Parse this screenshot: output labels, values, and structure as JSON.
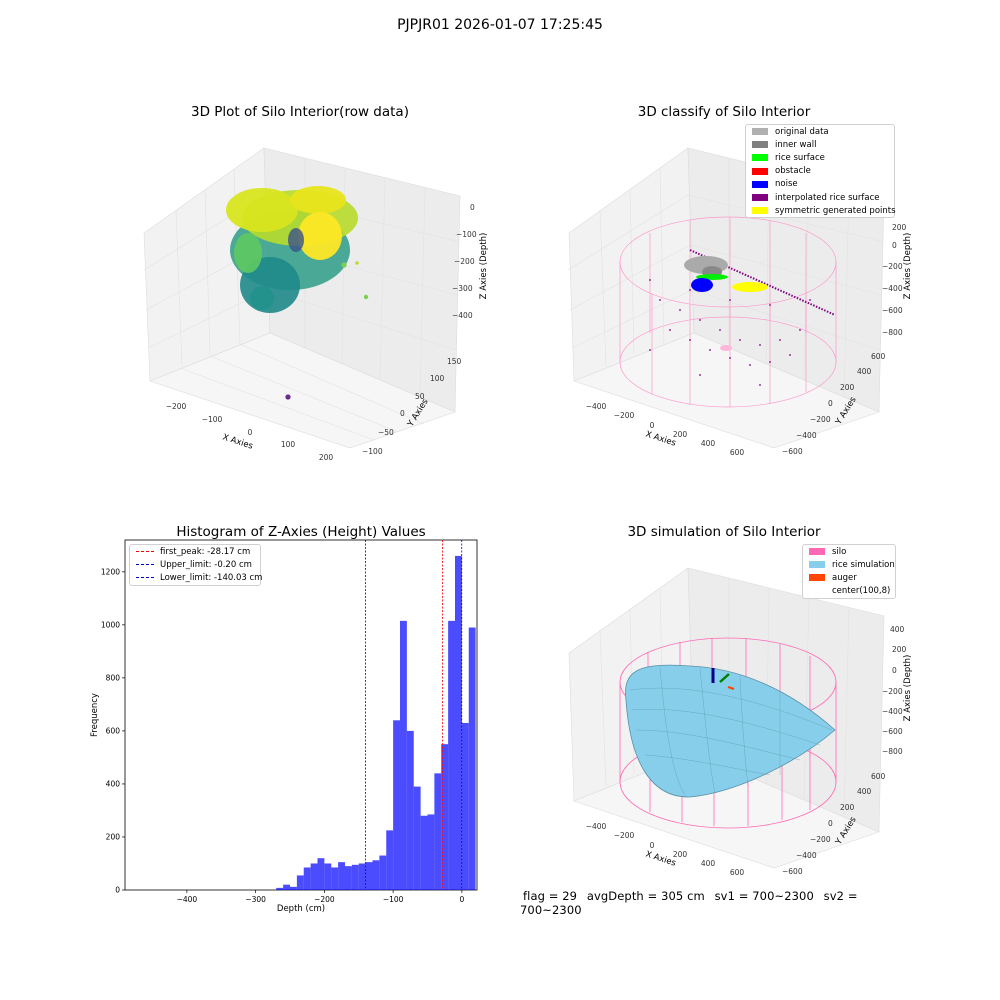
{
  "suptitle": "PJPJR01 2026-01-07 17:25:45",
  "colors": {
    "hist_bar": "#0000ff",
    "first_peak_line": "#ff0000",
    "limit_lines": "#0000cd",
    "silo_wire": "#ff69b4",
    "rice_surface": "#87ceeb"
  },
  "chart_data": [
    {
      "type": "scatter",
      "title": "3D Plot of Silo Interior(row data)",
      "xlabel": "X Axies",
      "ylabel": "Y Axies",
      "zlabel": "Z Axies (Depth)",
      "x_ticks": [
        "−200",
        "−100",
        "0",
        "100",
        "200"
      ],
      "y_ticks": [
        "−100",
        "−50",
        "0",
        "50",
        "100",
        "150"
      ],
      "z_ticks": [
        "−400",
        "−300",
        "−200",
        "−100",
        "0"
      ],
      "xlim": [
        -280,
        230
      ],
      "ylim": [
        -110,
        170
      ],
      "zlim": [
        -460,
        20
      ],
      "colormap": "viridis (by depth)",
      "note": "dense point cloud of silo interior, approx. 10,000 points"
    },
    {
      "type": "scatter",
      "title": "3D classify of Silo Interior",
      "xlabel": "X Axies",
      "ylabel": "Y Axies",
      "zlabel": "Z Axies (Depth)",
      "x_ticks": [
        "−400",
        "−200",
        "0",
        "200",
        "400",
        "600"
      ],
      "y_ticks": [
        "−600",
        "−400",
        "−200",
        "0",
        "200",
        "400",
        "600"
      ],
      "z_ticks": [
        "−800",
        "−600",
        "−400",
        "−200",
        "0",
        "200"
      ],
      "legend": [
        {
          "label": "original data",
          "color": "#b0b0b0"
        },
        {
          "label": "inner wall",
          "color": "#808080"
        },
        {
          "label": "rice surface",
          "color": "#00ff00"
        },
        {
          "label": "obstacle",
          "color": "#ff0000"
        },
        {
          "label": "noise",
          "color": "#0000ff"
        },
        {
          "label": "interpolated rice surface",
          "color": "#800080"
        },
        {
          "label": "symmetric generated points",
          "color": "#ffff00"
        }
      ]
    },
    {
      "type": "bar",
      "title": "Histogram of Z-Axies (Height) Values",
      "xlabel": "Depth (cm)",
      "ylabel": "Frequency",
      "xlim": [
        -490,
        22
      ],
      "ylim": [
        0,
        1320
      ],
      "x_ticks": [
        -400,
        -300,
        -200,
        -100,
        0
      ],
      "y_ticks": [
        0,
        200,
        400,
        600,
        800,
        1000,
        1200
      ],
      "bin_width": 10,
      "bins": [
        {
          "x0": -270,
          "value": 8
        },
        {
          "x0": -260,
          "value": 20
        },
        {
          "x0": -250,
          "value": 12
        },
        {
          "x0": -240,
          "value": 55
        },
        {
          "x0": -230,
          "value": 85
        },
        {
          "x0": -220,
          "value": 100
        },
        {
          "x0": -210,
          "value": 120
        },
        {
          "x0": -200,
          "value": 100
        },
        {
          "x0": -190,
          "value": 85
        },
        {
          "x0": -180,
          "value": 105
        },
        {
          "x0": -170,
          "value": 90
        },
        {
          "x0": -160,
          "value": 95
        },
        {
          "x0": -150,
          "value": 100
        },
        {
          "x0": -140,
          "value": 105
        },
        {
          "x0": -130,
          "value": 112
        },
        {
          "x0": -120,
          "value": 130
        },
        {
          "x0": -110,
          "value": 225
        },
        {
          "x0": -100,
          "value": 640
        },
        {
          "x0": -90,
          "value": 1015
        },
        {
          "x0": -80,
          "value": 600
        },
        {
          "x0": -70,
          "value": 390
        },
        {
          "x0": -60,
          "value": 280
        },
        {
          "x0": -50,
          "value": 285
        },
        {
          "x0": -40,
          "value": 440
        },
        {
          "x0": -30,
          "value": 550
        },
        {
          "x0": -20,
          "value": 1015
        },
        {
          "x0": -10,
          "value": 1260
        },
        {
          "x0": 0,
          "value": 630
        },
        {
          "x0": 10,
          "value": 990
        }
      ],
      "vlines": [
        {
          "label": "first_peak: -28.17 cm",
          "x": -28.17,
          "color": "#ff0000"
        },
        {
          "label": "Upper_limit: -0.20 cm",
          "x": -0.2,
          "color": "#0000cd"
        },
        {
          "label": "Lower_limit: -140.03 cm",
          "x": -140.03,
          "color": "#0000cd"
        }
      ]
    },
    {
      "type": "area",
      "title": "3D simulation of Silo Interior",
      "xlabel": "X Axies",
      "ylabel": "Y Axies",
      "zlabel": "Z Axies (Depth)",
      "x_ticks": [
        "−400",
        "−200",
        "0",
        "200",
        "400",
        "600"
      ],
      "y_ticks": [
        "−600",
        "−400",
        "−200",
        "0",
        "200",
        "400",
        "600"
      ],
      "z_ticks": [
        "−800",
        "−600",
        "−400",
        "−200",
        "0",
        "200",
        "400"
      ],
      "legend": [
        {
          "label": "silo",
          "color": "#ff69b4"
        },
        {
          "label": "rice simulation",
          "color": "#87ceeb"
        },
        {
          "label": "auger",
          "color": "#ff4500"
        },
        {
          "label": "center(100,8)",
          "color": ""
        }
      ]
    }
  ],
  "status": {
    "flag": "flag = 29",
    "avg": "avgDepth = 305 cm",
    "sv1": "sv1 = 700~2300",
    "sv2": "sv2 = 700~2300"
  }
}
